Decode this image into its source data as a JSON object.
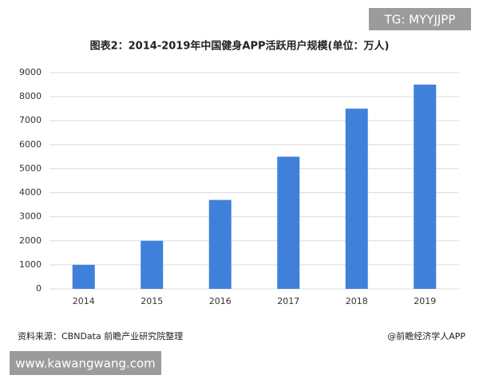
{
  "chart_data": {
    "type": "bar",
    "title": "图表2：2014-2019年中国健身APP活跃用户规模(单位：万人)",
    "categories": [
      "2014",
      "2015",
      "2016",
      "2017",
      "2018",
      "2019"
    ],
    "values": [
      1000,
      2000,
      3700,
      5500,
      7500,
      8500
    ],
    "color": "#3f80da",
    "ylim": [
      0,
      9000
    ],
    "yticks": [
      0,
      1000,
      2000,
      3000,
      4000,
      5000,
      6000,
      7000,
      8000,
      9000
    ],
    "grid": true,
    "source": "资料来源：CBNData 前瞻产业研究院整理",
    "credit": "@前瞻经济学人APP"
  },
  "overlays": {
    "top_right": "TG: MYYJJPP",
    "bottom_left": "www.kawangwang.com"
  }
}
